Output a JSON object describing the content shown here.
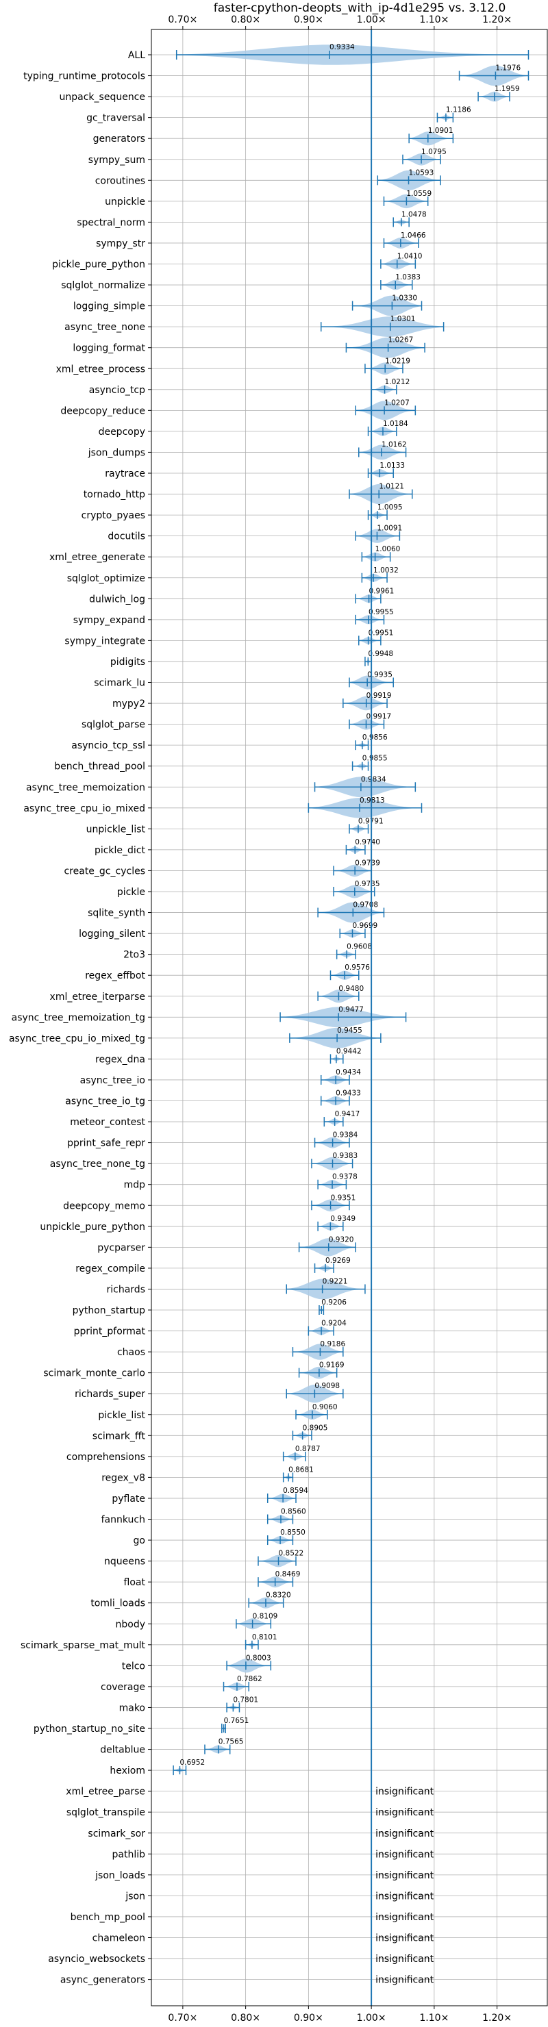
{
  "chart_data": {
    "type": "violin",
    "title": "faster-cpython-deopts_with_ip-4d1e295 vs. 3.12.0",
    "xlim": [
      0.65,
      1.28
    ],
    "xticks": [
      {
        "value": 0.7,
        "label": "0.70×"
      },
      {
        "value": 0.8,
        "label": "0.80×"
      },
      {
        "value": 0.9,
        "label": "0.90×"
      },
      {
        "value": 1.0,
        "label": "1.00×"
      },
      {
        "value": 1.1,
        "label": "1.10×"
      },
      {
        "value": 1.2,
        "label": "1.20×"
      }
    ],
    "reference_line": 1.0,
    "insignificant_label": "insignificant",
    "series": [
      {
        "name": "ALL",
        "value": 0.9334,
        "range": [
          0.69,
          1.25
        ]
      },
      {
        "name": "typing_runtime_protocols",
        "value": 1.1976,
        "range": [
          1.14,
          1.25
        ]
      },
      {
        "name": "unpack_sequence",
        "value": 1.1959,
        "range": [
          1.17,
          1.22
        ]
      },
      {
        "name": "gc_traversal",
        "value": 1.1186,
        "range": [
          1.105,
          1.13
        ]
      },
      {
        "name": "generators",
        "value": 1.0901,
        "range": [
          1.06,
          1.13
        ]
      },
      {
        "name": "sympy_sum",
        "value": 1.0795,
        "range": [
          1.05,
          1.11
        ]
      },
      {
        "name": "coroutines",
        "value": 1.0593,
        "range": [
          1.01,
          1.11
        ]
      },
      {
        "name": "unpickle",
        "value": 1.0559,
        "range": [
          1.02,
          1.09
        ]
      },
      {
        "name": "spectral_norm",
        "value": 1.0478,
        "range": [
          1.035,
          1.06
        ]
      },
      {
        "name": "sympy_str",
        "value": 1.0466,
        "range": [
          1.02,
          1.075
        ]
      },
      {
        "name": "pickle_pure_python",
        "value": 1.041,
        "range": [
          1.015,
          1.07
        ]
      },
      {
        "name": "sqlglot_normalize",
        "value": 1.0383,
        "range": [
          1.015,
          1.065
        ]
      },
      {
        "name": "logging_simple",
        "value": 1.033,
        "range": [
          0.97,
          1.08
        ]
      },
      {
        "name": "async_tree_none",
        "value": 1.0301,
        "range": [
          0.92,
          1.115
        ]
      },
      {
        "name": "logging_format",
        "value": 1.0267,
        "range": [
          0.96,
          1.085
        ]
      },
      {
        "name": "xml_etree_process",
        "value": 1.0219,
        "range": [
          0.99,
          1.05
        ]
      },
      {
        "name": "asyncio_tcp",
        "value": 1.0212,
        "range": [
          1.0,
          1.04
        ]
      },
      {
        "name": "deepcopy_reduce",
        "value": 1.0207,
        "range": [
          0.975,
          1.07
        ]
      },
      {
        "name": "deepcopy",
        "value": 1.0184,
        "range": [
          0.995,
          1.04
        ]
      },
      {
        "name": "json_dumps",
        "value": 1.0162,
        "range": [
          0.98,
          1.055
        ]
      },
      {
        "name": "raytrace",
        "value": 1.0133,
        "range": [
          0.995,
          1.035
        ]
      },
      {
        "name": "tornado_http",
        "value": 1.0121,
        "range": [
          0.965,
          1.065
        ]
      },
      {
        "name": "crypto_pyaes",
        "value": 1.0095,
        "range": [
          0.995,
          1.025
        ]
      },
      {
        "name": "docutils",
        "value": 1.0091,
        "range": [
          0.975,
          1.045
        ]
      },
      {
        "name": "xml_etree_generate",
        "value": 1.006,
        "range": [
          0.985,
          1.03
        ]
      },
      {
        "name": "sqlglot_optimize",
        "value": 1.0032,
        "range": [
          0.985,
          1.025
        ]
      },
      {
        "name": "dulwich_log",
        "value": 0.9961,
        "range": [
          0.975,
          1.015
        ]
      },
      {
        "name": "sympy_expand",
        "value": 0.9955,
        "range": [
          0.975,
          1.02
        ]
      },
      {
        "name": "sympy_integrate",
        "value": 0.9951,
        "range": [
          0.98,
          1.015
        ]
      },
      {
        "name": "pidigits",
        "value": 0.9948,
        "range": [
          0.99,
          1.0
        ]
      },
      {
        "name": "scimark_lu",
        "value": 0.9935,
        "range": [
          0.965,
          1.035
        ]
      },
      {
        "name": "mypy2",
        "value": 0.9919,
        "range": [
          0.955,
          1.025
        ]
      },
      {
        "name": "sqlglot_parse",
        "value": 0.9917,
        "range": [
          0.965,
          1.02
        ]
      },
      {
        "name": "asyncio_tcp_ssl",
        "value": 0.9856,
        "range": [
          0.975,
          0.995
        ]
      },
      {
        "name": "bench_thread_pool",
        "value": 0.9855,
        "range": [
          0.97,
          0.995
        ]
      },
      {
        "name": "async_tree_memoization",
        "value": 0.9834,
        "range": [
          0.91,
          1.07
        ]
      },
      {
        "name": "async_tree_cpu_io_mixed",
        "value": 0.9813,
        "range": [
          0.9,
          1.08
        ]
      },
      {
        "name": "unpickle_list",
        "value": 0.9791,
        "range": [
          0.965,
          0.995
        ]
      },
      {
        "name": "pickle_dict",
        "value": 0.974,
        "range": [
          0.96,
          0.99
        ]
      },
      {
        "name": "create_gc_cycles",
        "value": 0.9739,
        "range": [
          0.94,
          1.0
        ]
      },
      {
        "name": "pickle",
        "value": 0.9735,
        "range": [
          0.94,
          1.005
        ]
      },
      {
        "name": "sqlite_synth",
        "value": 0.9708,
        "range": [
          0.915,
          1.02
        ]
      },
      {
        "name": "logging_silent",
        "value": 0.9699,
        "range": [
          0.95,
          0.99
        ]
      },
      {
        "name": "2to3",
        "value": 0.9608,
        "range": [
          0.945,
          0.975
        ]
      },
      {
        "name": "regex_effbot",
        "value": 0.9576,
        "range": [
          0.935,
          0.98
        ]
      },
      {
        "name": "xml_etree_iterparse",
        "value": 0.948,
        "range": [
          0.915,
          0.98
        ]
      },
      {
        "name": "async_tree_memoization_tg",
        "value": 0.9477,
        "range": [
          0.855,
          1.055
        ]
      },
      {
        "name": "async_tree_cpu_io_mixed_tg",
        "value": 0.9455,
        "range": [
          0.87,
          1.015
        ]
      },
      {
        "name": "regex_dna",
        "value": 0.9442,
        "range": [
          0.935,
          0.955
        ]
      },
      {
        "name": "async_tree_io",
        "value": 0.9434,
        "range": [
          0.92,
          0.965
        ]
      },
      {
        "name": "async_tree_io_tg",
        "value": 0.9433,
        "range": [
          0.92,
          0.965
        ]
      },
      {
        "name": "meteor_contest",
        "value": 0.9417,
        "range": [
          0.925,
          0.955
        ]
      },
      {
        "name": "pprint_safe_repr",
        "value": 0.9384,
        "range": [
          0.91,
          0.965
        ]
      },
      {
        "name": "async_tree_none_tg",
        "value": 0.9383,
        "range": [
          0.905,
          0.97
        ]
      },
      {
        "name": "mdp",
        "value": 0.9378,
        "range": [
          0.915,
          0.96
        ]
      },
      {
        "name": "deepcopy_memo",
        "value": 0.9351,
        "range": [
          0.905,
          0.965
        ]
      },
      {
        "name": "unpickle_pure_python",
        "value": 0.9349,
        "range": [
          0.915,
          0.955
        ]
      },
      {
        "name": "pycparser",
        "value": 0.932,
        "range": [
          0.885,
          0.975
        ]
      },
      {
        "name": "regex_compile",
        "value": 0.9269,
        "range": [
          0.91,
          0.94
        ]
      },
      {
        "name": "richards",
        "value": 0.9221,
        "range": [
          0.865,
          0.99
        ]
      },
      {
        "name": "python_startup",
        "value": 0.9206,
        "range": [
          0.917,
          0.924
        ]
      },
      {
        "name": "pprint_pformat",
        "value": 0.9204,
        "range": [
          0.9,
          0.94
        ]
      },
      {
        "name": "chaos",
        "value": 0.9186,
        "range": [
          0.875,
          0.955
        ]
      },
      {
        "name": "scimark_monte_carlo",
        "value": 0.9169,
        "range": [
          0.885,
          0.945
        ]
      },
      {
        "name": "richards_super",
        "value": 0.9098,
        "range": [
          0.865,
          0.955
        ]
      },
      {
        "name": "pickle_list",
        "value": 0.906,
        "range": [
          0.88,
          0.93
        ]
      },
      {
        "name": "scimark_fft",
        "value": 0.8905,
        "range": [
          0.875,
          0.905
        ]
      },
      {
        "name": "comprehensions",
        "value": 0.8787,
        "range": [
          0.86,
          0.895
        ]
      },
      {
        "name": "regex_v8",
        "value": 0.8681,
        "range": [
          0.86,
          0.875
        ]
      },
      {
        "name": "pyflate",
        "value": 0.8594,
        "range": [
          0.835,
          0.88
        ]
      },
      {
        "name": "fannkuch",
        "value": 0.856,
        "range": [
          0.835,
          0.875
        ]
      },
      {
        "name": "go",
        "value": 0.855,
        "range": [
          0.835,
          0.875
        ]
      },
      {
        "name": "nqueens",
        "value": 0.8522,
        "range": [
          0.82,
          0.88
        ]
      },
      {
        "name": "float",
        "value": 0.8469,
        "range": [
          0.82,
          0.875
        ]
      },
      {
        "name": "tomli_loads",
        "value": 0.832,
        "range": [
          0.805,
          0.86
        ]
      },
      {
        "name": "nbody",
        "value": 0.8109,
        "range": [
          0.785,
          0.84
        ]
      },
      {
        "name": "scimark_sparse_mat_mult",
        "value": 0.8101,
        "range": [
          0.8,
          0.82
        ]
      },
      {
        "name": "telco",
        "value": 0.8003,
        "range": [
          0.77,
          0.84
        ]
      },
      {
        "name": "coverage",
        "value": 0.7862,
        "range": [
          0.765,
          0.805
        ]
      },
      {
        "name": "mako",
        "value": 0.7801,
        "range": [
          0.77,
          0.79
        ]
      },
      {
        "name": "python_startup_no_site",
        "value": 0.7651,
        "range": [
          0.762,
          0.768
        ]
      },
      {
        "name": "deltablue",
        "value": 0.7565,
        "range": [
          0.735,
          0.775
        ]
      },
      {
        "name": "hexiom",
        "value": 0.6952,
        "range": [
          0.685,
          0.705
        ]
      },
      {
        "name": "xml_etree_parse",
        "value": null
      },
      {
        "name": "sqlglot_transpile",
        "value": null
      },
      {
        "name": "scimark_sor",
        "value": null
      },
      {
        "name": "pathlib",
        "value": null
      },
      {
        "name": "json_loads",
        "value": null
      },
      {
        "name": "json",
        "value": null
      },
      {
        "name": "bench_mp_pool",
        "value": null
      },
      {
        "name": "chameleon",
        "value": null
      },
      {
        "name": "asyncio_websockets",
        "value": null
      },
      {
        "name": "async_generators",
        "value": null
      }
    ],
    "colors": {
      "violin": "#aacbe8",
      "whisker": "#1f77b4",
      "reference": "#1f77b4",
      "grid": "#b0b0b0",
      "text": "#000000"
    }
  }
}
